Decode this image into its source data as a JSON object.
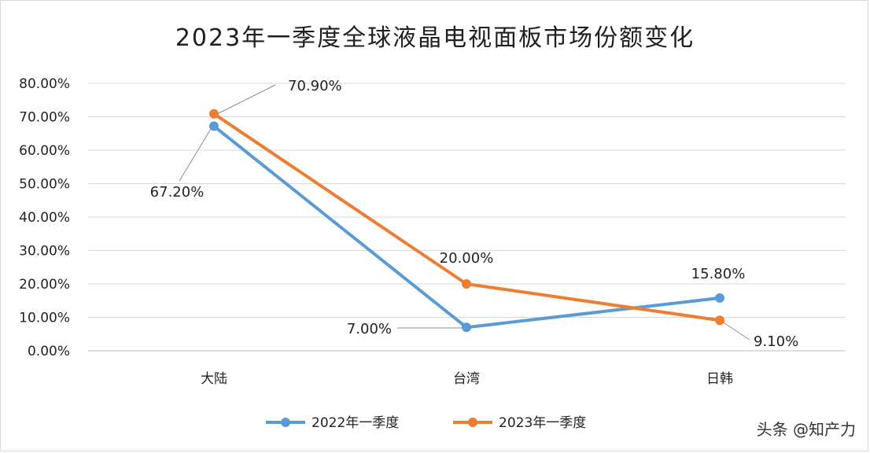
{
  "chart_data": {
    "type": "line",
    "title": "2023年一季度全球液晶电视面板市场份额变化",
    "categories": [
      "大陆",
      "台湾",
      "日韩"
    ],
    "series": [
      {
        "name": "2022年一季度",
        "values": [
          67.2,
          7.0,
          15.8
        ],
        "labels": [
          "67.20%",
          "7.00%",
          "15.80%"
        ],
        "color": "#5b9bd5"
      },
      {
        "name": "2023年一季度",
        "values": [
          70.9,
          20.0,
          9.1
        ],
        "labels": [
          "70.90%",
          "20.00%",
          "9.10%"
        ],
        "color": "#ed7d31"
      }
    ],
    "y_ticks": [
      "0.00%",
      "10.00%",
      "20.00%",
      "30.00%",
      "40.00%",
      "50.00%",
      "60.00%",
      "70.00%",
      "80.00%"
    ],
    "ylim": [
      0,
      80
    ],
    "grid": true,
    "legend": "bottom"
  },
  "watermark": "头条 @知产力"
}
